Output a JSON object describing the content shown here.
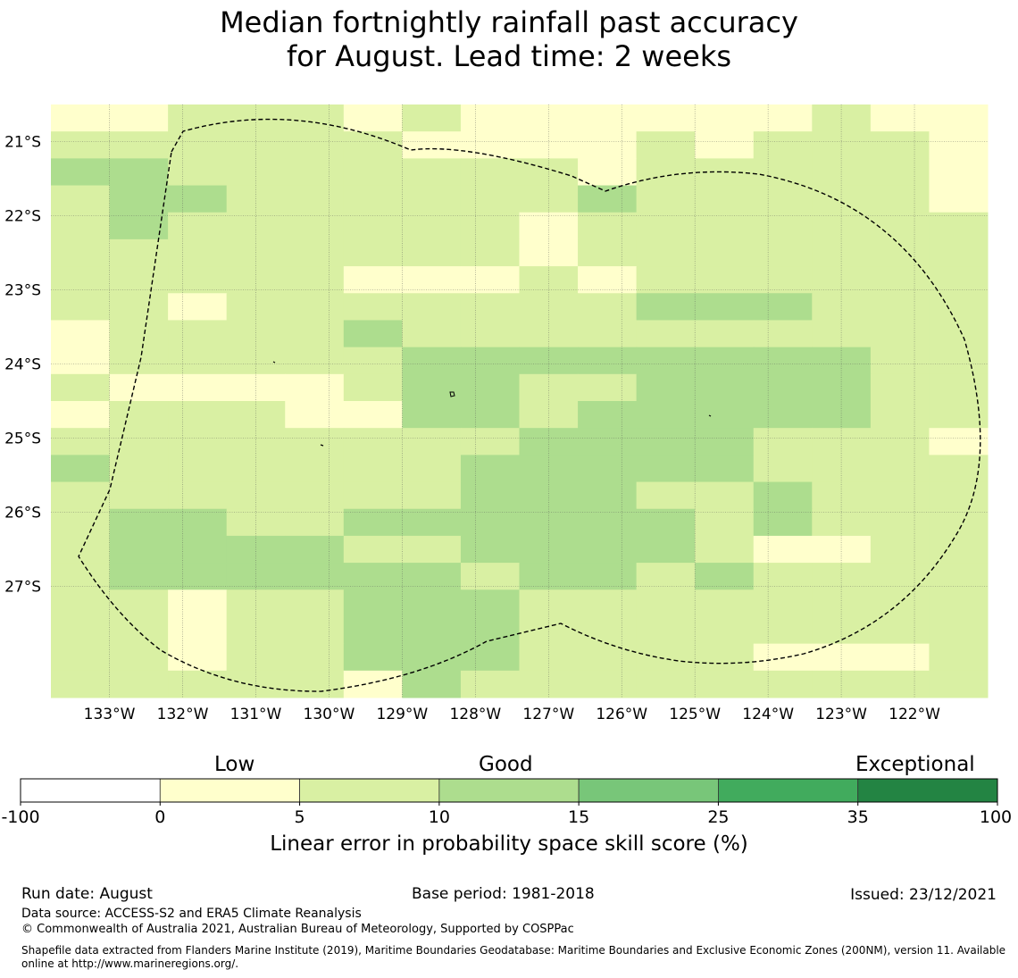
{
  "title_line1": "Median fortnightly rainfall past accuracy",
  "title_line2": "for August. Lead time: 2 weeks",
  "map": {
    "lon_range": [
      -133.8,
      -121.0
    ],
    "lat_range": [
      -28.5,
      -20.5
    ],
    "lon_ticks": [
      "133°W",
      "132°W",
      "131°W",
      "130°W",
      "129°W",
      "128°W",
      "127°W",
      "126°W",
      "125°W",
      "124°W",
      "123°W",
      "122°W"
    ],
    "lat_ticks": [
      "21°S",
      "22°S",
      "23°S",
      "24°S",
      "25°S",
      "26°S",
      "27°S"
    ],
    "category_colors": [
      "#ffffff",
      "#ffffcc",
      "#d9f0a3",
      "#addd8e",
      "#78c679",
      "#41ab5d",
      "#238443"
    ],
    "grid_rows": [
      "1122212111111211",
      "2222221111212221",
      "3322222221222221",
      "2332222223222221",
      "2322222212222222",
      "2222222212222222",
      "2222211121222222",
      "2212222222333222",
      "1222232222222222",
      "1222223333333322",
      "2111123322333322",
      "1222113323333322",
      "2222222233332221",
      "3222222333332222",
      "2222222333223222",
      "2332233333323222",
      "2333322333321122",
      "2333333233232222",
      "2212233322222222",
      "2212233322222222",
      "2212233322221112",
      "2222213222222222"
    ]
  },
  "legend": {
    "low": "Low",
    "good": "Good",
    "exceptional": "Exceptional",
    "ticks": [
      "-100",
      "0",
      "5",
      "10",
      "15",
      "25",
      "35",
      "100"
    ],
    "colors": [
      "#ffffff",
      "#ffffcc",
      "#d9f0a3",
      "#addd8e",
      "#78c679",
      "#41ab5d",
      "#238443"
    ],
    "title": "Linear error in probability space skill score (%)"
  },
  "footer": {
    "run_date": "Run date: August",
    "base_period": "Base period: 1981-2018",
    "issued": "Issued: 23/12/2021",
    "data_source": "Data source: ACCESS-S2 and ERA5 Climate Reanalysis",
    "copyright": "© Commonwealth of Australia 2021, Australian Bureau of Meteorology, Supported by COSPPac",
    "shapefile": "Shapefile data extracted from Flanders Marine Institute (2019), Maritime Boundaries Geodatabase: Maritime Boundaries and Exclusive Economic Zones (200NM), version 11. Available online at http://www.marineregions.org/."
  }
}
